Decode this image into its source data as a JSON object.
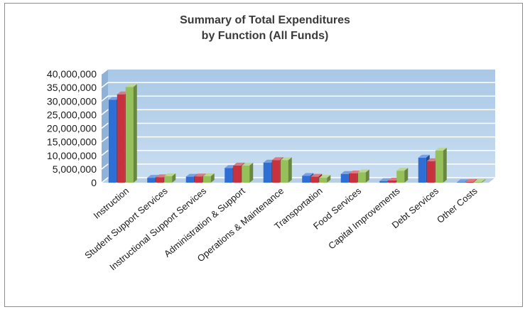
{
  "chart_data": {
    "type": "bar",
    "title_lines": [
      "Summary of Total Expenditures",
      "by Function (All Funds)"
    ],
    "xlabel": "",
    "ylabel": "",
    "ylim": [
      0,
      40000000
    ],
    "yticks": [
      "0",
      "5,000,000",
      "10,000,000",
      "15,000,000",
      "20,000,000",
      "25,000,000",
      "30,000,000",
      "35,000,000",
      "40,000,000"
    ],
    "grid": true,
    "legend": "none",
    "categories": [
      "Instruction",
      "Student Support Services",
      "Instructional Support Services",
      "Administration & Support",
      "Operations & Maintenance",
      "Transportation",
      "Food Services",
      "Capital Improvements",
      "Debt Services",
      "Other Costs"
    ],
    "series": [
      {
        "color": "#2e6fd6",
        "values": [
          30500000,
          1800000,
          2200000,
          5400000,
          7400000,
          2500000,
          3200000,
          600000,
          9200000,
          200000
        ]
      },
      {
        "color": "#c8323f",
        "values": [
          32500000,
          2000000,
          2300000,
          6300000,
          8300000,
          2200000,
          3400000,
          800000,
          7900000,
          300000
        ]
      },
      {
        "color": "#96c15a",
        "values": [
          35200000,
          2400000,
          2400000,
          6300000,
          8300000,
          1800000,
          3800000,
          4400000,
          11800000,
          300000
        ]
      }
    ]
  }
}
